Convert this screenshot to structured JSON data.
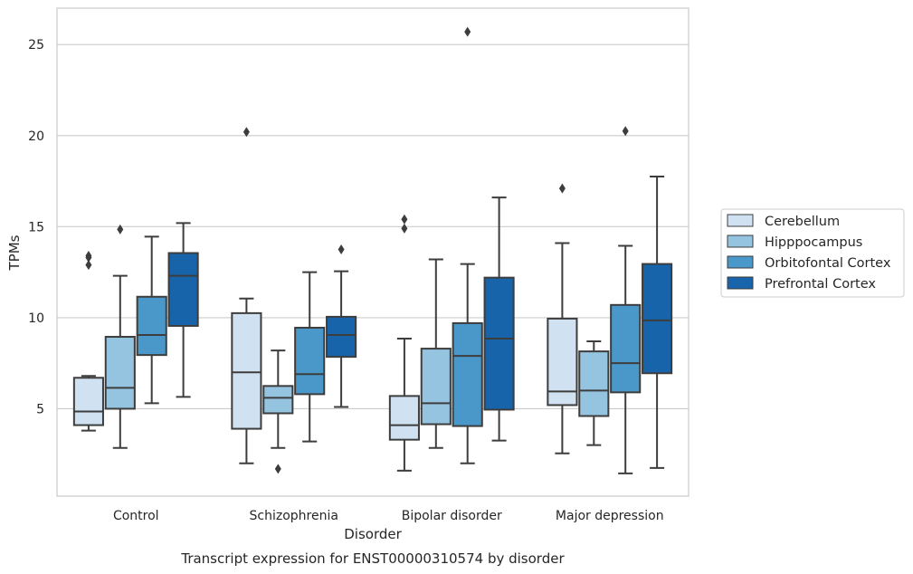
{
  "chart_data": {
    "type": "box",
    "caption": "Transcript expression for ENST00000310574 by disorder",
    "xlabel": "Disorder",
    "ylabel": "TPMs",
    "categories": [
      "Control",
      "Schizophrenia",
      "Bipolar disorder",
      "Major depression"
    ],
    "y_ticks": [
      5,
      10,
      15,
      20,
      25
    ],
    "ylim": [
      0.2,
      27
    ],
    "grid": "horizontal",
    "legend_position": "right",
    "series": [
      {
        "name": "Cerebellum",
        "color": "#d0e1f2",
        "boxes": [
          {
            "whislo": 3.8,
            "q1": 4.1,
            "med": 4.85,
            "q3": 6.7,
            "whishi": 6.8,
            "fliers": [
              12.9,
              13.3,
              13.4
            ]
          },
          {
            "whislo": 2.0,
            "q1": 3.9,
            "med": 7.0,
            "q3": 10.25,
            "whishi": 11.05,
            "fliers": [
              20.2
            ]
          },
          {
            "whislo": 1.6,
            "q1": 3.3,
            "med": 4.1,
            "q3": 5.7,
            "whishi": 8.85,
            "fliers": [
              14.9,
              15.4
            ]
          },
          {
            "whislo": 2.55,
            "q1": 5.2,
            "med": 5.95,
            "q3": 9.95,
            "whishi": 14.1,
            "fliers": [
              17.1
            ]
          }
        ]
      },
      {
        "name": "Hipppocampus",
        "color": "#94c4df",
        "boxes": [
          {
            "whislo": 2.85,
            "q1": 5.0,
            "med": 6.15,
            "q3": 8.95,
            "whishi": 12.3,
            "fliers": [
              14.85
            ]
          },
          {
            "whislo": 2.85,
            "q1": 4.75,
            "med": 5.6,
            "q3": 6.25,
            "whishi": 8.2,
            "fliers": [
              1.7
            ]
          },
          {
            "whislo": 2.85,
            "q1": 4.15,
            "med": 5.3,
            "q3": 8.3,
            "whishi": 13.2,
            "fliers": []
          },
          {
            "whislo": 3.0,
            "q1": 4.6,
            "med": 6.0,
            "q3": 8.15,
            "whishi": 8.7,
            "fliers": []
          }
        ]
      },
      {
        "name": "Orbitofontal Cortex",
        "color": "#4a98c9",
        "boxes": [
          {
            "whislo": 5.3,
            "q1": 7.95,
            "med": 9.05,
            "q3": 11.15,
            "whishi": 14.45,
            "fliers": []
          },
          {
            "whislo": 3.2,
            "q1": 5.8,
            "med": 6.9,
            "q3": 9.45,
            "whishi": 12.5,
            "fliers": []
          },
          {
            "whislo": 2.0,
            "q1": 4.05,
            "med": 7.9,
            "q3": 9.7,
            "whishi": 12.95,
            "fliers": [
              25.7
            ]
          },
          {
            "whislo": 1.45,
            "q1": 5.9,
            "med": 7.5,
            "q3": 10.7,
            "whishi": 13.95,
            "fliers": [
              20.25
            ]
          }
        ]
      },
      {
        "name": "Prefrontal Cortex",
        "color": "#1764ab",
        "boxes": [
          {
            "whislo": 5.65,
            "q1": 9.55,
            "med": 12.3,
            "q3": 13.55,
            "whishi": 15.2,
            "fliers": []
          },
          {
            "whislo": 5.1,
            "q1": 7.85,
            "med": 9.05,
            "q3": 10.05,
            "whishi": 12.55,
            "fliers": [
              13.75
            ]
          },
          {
            "whislo": 3.25,
            "q1": 4.95,
            "med": 8.85,
            "q3": 12.2,
            "whishi": 16.6,
            "fliers": []
          },
          {
            "whislo": 1.75,
            "q1": 6.95,
            "med": 9.85,
            "q3": 12.95,
            "whishi": 17.75,
            "fliers": []
          }
        ]
      }
    ]
  }
}
